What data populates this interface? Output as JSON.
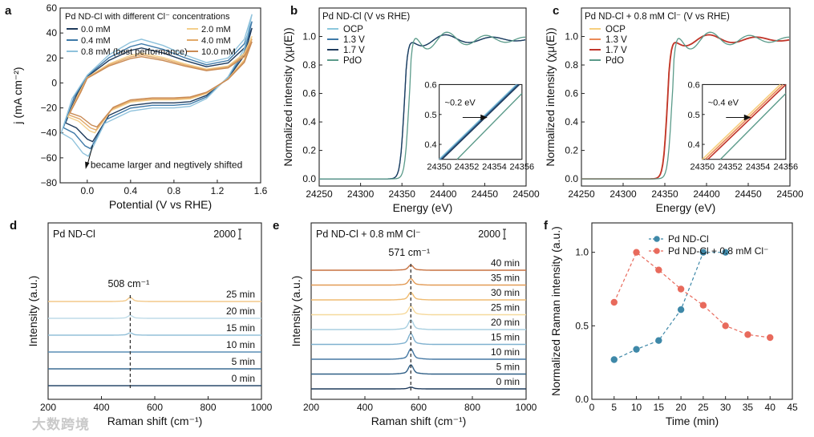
{
  "watermark": "大数跨境",
  "colors": {
    "c0": "#1f3b5c",
    "c04": "#3e79a8",
    "c08": "#8fc2dc",
    "c2": "#f4cf8c",
    "c4": "#e2a969",
    "c10": "#c98a54",
    "ocp": "#8cc7dc",
    "v13": "#3e79a8",
    "v17": "#1f3b5c",
    "pdo": "#5b9b8a",
    "ocp_c": "#f6cf7e",
    "v13_c": "#ea8a57",
    "v17_c": "#c0352b",
    "ndcl": "#3e88a8",
    "ndcl08": "#e86a5c"
  },
  "chart_data": [
    {
      "id": "a",
      "type": "line",
      "panel_label": "a",
      "xlabel": "Potential (V vs RHE)",
      "ylabel": "j (mA cm⁻²)",
      "xlim": [
        -0.25,
        1.6
      ],
      "ylim": [
        -80,
        60
      ],
      "xticks": [
        "0.0",
        "0.4",
        "0.8",
        "1.2",
        "1.6"
      ],
      "xtick_values": [
        0.0,
        0.4,
        0.8,
        1.2,
        1.6
      ],
      "yticks": [
        "−80",
        "−60",
        "−40",
        "−20",
        "0",
        "20",
        "40",
        "60"
      ],
      "ytick_values": [
        -80,
        -60,
        -40,
        -20,
        0,
        20,
        40,
        60
      ],
      "legend_title": "Pd ND-Cl with different Cl⁻ concentrations",
      "annotation": "became larger and negtively shifted",
      "series": [
        {
          "name": "0.0 mM",
          "color_key": "c0",
          "scale": 1.0,
          "shift": 0.0
        },
        {
          "name": "0.4 mM",
          "color_key": "c04",
          "scale": 1.12,
          "shift": -0.02
        },
        {
          "name": "0.8 mM (best performance)",
          "color_key": "c08",
          "scale": 1.25,
          "shift": -0.04
        },
        {
          "name": "2.0 mM",
          "color_key": "c2",
          "scale": 0.85,
          "shift": 0.02
        },
        {
          "name": "4.0 mM",
          "color_key": "c4",
          "scale": 0.8,
          "shift": 0.03
        },
        {
          "name": "10.0 mM",
          "color_key": "c10",
          "scale": 0.75,
          "shift": 0.04
        }
      ],
      "cycle_upper": [
        [
          -0.2,
          -32
        ],
        [
          -0.1,
          -10
        ],
        [
          0.0,
          5
        ],
        [
          0.2,
          18
        ],
        [
          0.4,
          26
        ],
        [
          0.5,
          28
        ],
        [
          0.7,
          24
        ],
        [
          0.9,
          18
        ],
        [
          1.1,
          13
        ],
        [
          1.3,
          16
        ],
        [
          1.45,
          28
        ],
        [
          1.52,
          44
        ]
      ],
      "cycle_lower": [
        [
          1.52,
          44
        ],
        [
          1.45,
          22
        ],
        [
          1.3,
          4
        ],
        [
          1.1,
          -10
        ],
        [
          0.95,
          -15
        ],
        [
          0.8,
          -16
        ],
        [
          0.6,
          -16
        ],
        [
          0.4,
          -18
        ],
        [
          0.2,
          -26
        ],
        [
          0.1,
          -40
        ],
        [
          0.05,
          -47
        ],
        [
          0.0,
          -45
        ],
        [
          -0.1,
          -36
        ],
        [
          -0.2,
          -32
        ]
      ]
    },
    {
      "id": "b",
      "type": "line",
      "panel_label": "b",
      "title": "Pd ND-Cl (V vs RHE)",
      "xlabel": "Energy (eV)",
      "ylabel": "Normalized intensity (χμ(E))",
      "xlim": [
        24250,
        24500
      ],
      "ylim": [
        -0.05,
        1.2
      ],
      "xticks": [
        "24250",
        "24300",
        "24350",
        "24400",
        "24450",
        "24500"
      ],
      "xtick_values": [
        24250,
        24300,
        24350,
        24400,
        24450,
        24500
      ],
      "yticks": [
        "0.0",
        "0.2",
        "0.4",
        "0.6",
        "0.8",
        "1.0"
      ],
      "ytick_values": [
        0.0,
        0.2,
        0.4,
        0.6,
        0.8,
        1.0
      ],
      "series": [
        {
          "name": "OCP",
          "color_key": "ocp"
        },
        {
          "name": "1.3 V",
          "color_key": "v13"
        },
        {
          "name": "1.7 V",
          "color_key": "v17"
        },
        {
          "name": "PdO",
          "color_key": "pdo"
        }
      ],
      "inset": {
        "xlim": [
          24350,
          24356
        ],
        "ylim": [
          0.35,
          0.6
        ],
        "xticks": [
          "24350",
          "24352",
          "24354",
          "24356"
        ],
        "xtick_values": [
          24350,
          24352,
          24354,
          24356
        ],
        "yticks": [
          "0.4",
          "0.5",
          "0.6"
        ],
        "ytick_values": [
          0.4,
          0.5,
          0.6
        ],
        "annotation": "~0.2 eV",
        "metal_shift": 0.2
      }
    },
    {
      "id": "c",
      "type": "line",
      "panel_label": "c",
      "title": "Pd ND-Cl + 0.8 mM Cl⁻ (V vs RHE)",
      "xlabel": "Energy (eV)",
      "ylabel": "Normalized intensity (χμ(E))",
      "xlim": [
        24250,
        24500
      ],
      "ylim": [
        -0.05,
        1.2
      ],
      "xticks": [
        "24250",
        "24300",
        "24350",
        "24400",
        "24450",
        "24500"
      ],
      "xtick_values": [
        24250,
        24300,
        24350,
        24400,
        24450,
        24500
      ],
      "yticks": [
        "0.0",
        "0.2",
        "0.4",
        "0.6",
        "0.8",
        "1.0"
      ],
      "ytick_values": [
        0.0,
        0.2,
        0.4,
        0.6,
        0.8,
        1.0
      ],
      "series": [
        {
          "name": "OCP",
          "color_key": "ocp_c"
        },
        {
          "name": "1.3 V",
          "color_key": "v13_c"
        },
        {
          "name": "1.7 V",
          "color_key": "v17_c"
        },
        {
          "name": "PdO",
          "color_key": "pdo"
        }
      ],
      "inset": {
        "xlim": [
          24350,
          24356
        ],
        "ylim": [
          0.35,
          0.6
        ],
        "xticks": [
          "24350",
          "24352",
          "24354",
          "24356"
        ],
        "xtick_values": [
          24350,
          24352,
          24354,
          24356
        ],
        "yticks": [
          "0.4",
          "0.5",
          "0.6"
        ],
        "ytick_values": [
          0.4,
          0.5,
          0.6
        ],
        "annotation": "~0.4 eV",
        "metal_shift": 0.4
      }
    },
    {
      "id": "d",
      "type": "line",
      "panel_label": "d",
      "title": "Pd ND-Cl",
      "scale_label": "2000",
      "xlabel": "Raman shift (cm⁻¹)",
      "ylabel": "Intensity (a.u.)",
      "xlim": [
        200,
        1000
      ],
      "xticks": [
        "200",
        "400",
        "600",
        "800",
        "1000"
      ],
      "xtick_values": [
        200,
        400,
        600,
        800,
        1000
      ],
      "peak": 508,
      "peak_label": "508 cm⁻¹",
      "spectra": [
        {
          "name": "0 min",
          "color": "#2a4a6b",
          "amp": 0.0
        },
        {
          "name": "5 min",
          "color": "#3d6d93",
          "amp": 0.0
        },
        {
          "name": "10 min",
          "color": "#5a8eb5",
          "amp": 0.0
        },
        {
          "name": "15 min",
          "color": "#93c0d8",
          "amp": 0.4
        },
        {
          "name": "20 min",
          "color": "#bfdbe8",
          "amp": 0.5
        },
        {
          "name": "25 min",
          "color": "#f3c98a",
          "amp": 0.7
        }
      ]
    },
    {
      "id": "e",
      "type": "line",
      "panel_label": "e",
      "title": "Pd ND-Cl + 0.8 mM Cl⁻",
      "scale_label": "2000",
      "xlabel": "Raman shift (cm⁻¹)",
      "ylabel": "Intensity (a.u.)",
      "xlim": [
        200,
        1000
      ],
      "xticks": [
        "200",
        "400",
        "600",
        "800",
        "1000"
      ],
      "xtick_values": [
        200,
        400,
        600,
        800,
        1000
      ],
      "peak": 571,
      "peak_label": "571 cm⁻¹",
      "spectra": [
        {
          "name": "0 min",
          "color": "#1f3b5c",
          "amp": 0.3
        },
        {
          "name": "5 min",
          "color": "#2f5f86",
          "amp": 1.6
        },
        {
          "name": "10 min",
          "color": "#4679a4",
          "amp": 1.8
        },
        {
          "name": "15 min",
          "color": "#7fb1cf",
          "amp": 1.9
        },
        {
          "name": "20 min",
          "color": "#a8cfe0",
          "amp": 1.7
        },
        {
          "name": "25 min",
          "color": "#f6d99c",
          "amp": 1.5
        },
        {
          "name": "30 min",
          "color": "#efbb70",
          "amp": 1.3
        },
        {
          "name": "35 min",
          "color": "#e29a55",
          "amp": 1.1
        },
        {
          "name": "40 min",
          "color": "#c77241",
          "amp": 0.9
        }
      ]
    },
    {
      "id": "f",
      "type": "scatter",
      "panel_label": "f",
      "xlabel": "Time (min)",
      "ylabel": "Normalized Raman intensity (a.u.)",
      "xlim": [
        0,
        45
      ],
      "ylim": [
        0,
        1.2
      ],
      "xticks": [
        "0",
        "5",
        "10",
        "15",
        "20",
        "25",
        "30",
        "35",
        "40",
        "45"
      ],
      "xtick_values": [
        0,
        5,
        10,
        15,
        20,
        25,
        30,
        35,
        40,
        45
      ],
      "yticks": [
        "0.0",
        "0.5",
        "1.0"
      ],
      "ytick_values": [
        0.0,
        0.5,
        1.0
      ],
      "series": [
        {
          "name": "Pd ND-Cl",
          "color_key": "ndcl",
          "x": [
            5,
            10,
            15,
            20,
            25,
            30
          ],
          "y": [
            0.27,
            0.34,
            0.4,
            0.61,
            1.0,
            1.0
          ]
        },
        {
          "name": "Pd ND-Cl + 0.8 mM Cl⁻",
          "color_key": "ndcl08",
          "x": [
            5,
            10,
            15,
            20,
            25,
            30,
            35,
            40
          ],
          "y": [
            0.66,
            1.0,
            0.88,
            0.75,
            0.64,
            0.5,
            0.44,
            0.42
          ]
        }
      ]
    }
  ]
}
